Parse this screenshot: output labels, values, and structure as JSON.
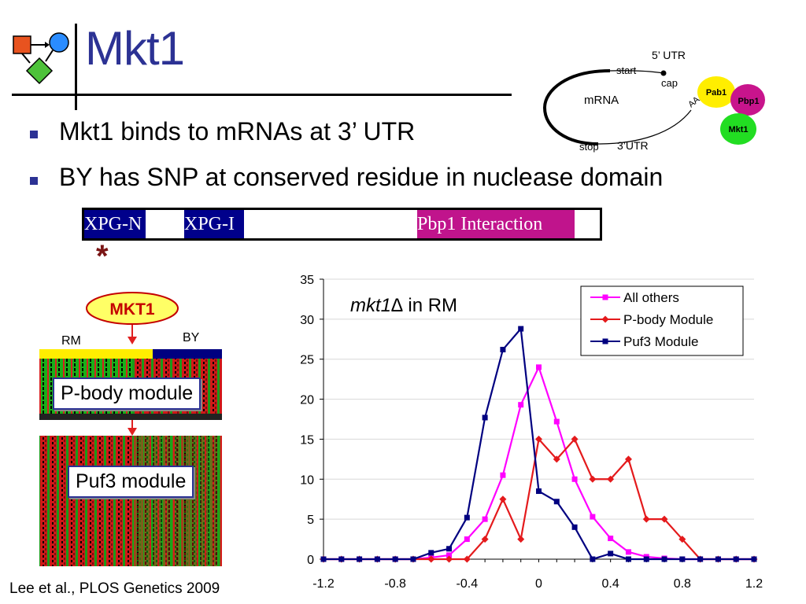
{
  "slide": {
    "title": "Mkt1",
    "bullets": [
      "Mkt1 binds to mRNAs at 3’ UTR",
      "BY has SNP at conserved residue in nuclease domain"
    ],
    "citation": "Lee et al., PLOS Genetics 2009"
  },
  "domains": {
    "xpg_n": "XPG-N",
    "xpg_i": "XPG-I",
    "pbp1": "Pbp1 Interaction",
    "snp_marker": "*",
    "colors": {
      "xpg": "#00008b",
      "pbp1": "#c0148c"
    }
  },
  "mrna_diagram": {
    "utr5": "5’ UTR",
    "start": "start",
    "cap": "cap",
    "mrna": "mRNA",
    "stop": "stop",
    "utr3": "3’UTR",
    "polya": "AAAAAA",
    "pab1": "Pab1",
    "pbp1": "Pbp1",
    "mkt1": "Mkt1"
  },
  "regulation": {
    "gene": "MKT1",
    "rm": "RM",
    "by": "BY",
    "pbody": "P-body module",
    "puf3": "Puf3 module"
  },
  "chart_data": {
    "type": "line",
    "title_prefix": "mkt1",
    "title_delta": "∆",
    "title_suffix": " in RM",
    "xlim": [
      -1.2,
      1.2
    ],
    "ylim": [
      0,
      35
    ],
    "xticks": [
      -1.2,
      -0.8,
      -0.4,
      0,
      0.4,
      0.8,
      1.2
    ],
    "xtick_labels": [
      "-1.2",
      "-0.8",
      "-0.4",
      "0",
      "0.4",
      "0.8",
      "1.2"
    ],
    "yticks": [
      0,
      5,
      10,
      15,
      20,
      25,
      30,
      35
    ],
    "ytick_labels": [
      "0",
      "5",
      "10",
      "15",
      "20",
      "25",
      "30",
      "35"
    ],
    "legend_position": "top-right",
    "x": [
      -1.2,
      -1.1,
      -1.0,
      -0.9,
      -0.8,
      -0.7,
      -0.6,
      -0.5,
      -0.4,
      -0.3,
      -0.2,
      -0.1,
      0.0,
      0.1,
      0.2,
      0.3,
      0.4,
      0.5,
      0.6,
      0.7,
      0.8,
      0.9,
      1.0,
      1.1,
      1.2
    ],
    "series": [
      {
        "name": "All others",
        "color": "#ff00ff",
        "marker": "square",
        "values": [
          0,
          0,
          0,
          0,
          0,
          0,
          0.2,
          0.5,
          2.5,
          5,
          10.5,
          19.3,
          24,
          17.2,
          10,
          5.3,
          2.6,
          0.9,
          0.3,
          0.1,
          0,
          0,
          0,
          0,
          0
        ]
      },
      {
        "name": "P-body Module",
        "color": "#e41a1c",
        "marker": "diamond",
        "values": [
          0,
          0,
          0,
          0,
          0,
          0,
          0,
          0,
          0,
          2.5,
          7.5,
          2.5,
          15,
          12.5,
          15,
          10,
          10,
          12.5,
          5,
          5,
          2.5,
          0,
          0,
          0,
          0
        ]
      },
      {
        "name": "Puf3 Module",
        "color": "#000080",
        "marker": "square",
        "values": [
          0,
          0,
          0,
          0,
          0,
          0,
          0.8,
          1.3,
          5.2,
          17.7,
          26.2,
          28.8,
          8.5,
          7.2,
          4,
          0,
          0.7,
          0,
          0,
          0,
          0,
          0,
          0,
          0,
          0
        ]
      }
    ]
  }
}
